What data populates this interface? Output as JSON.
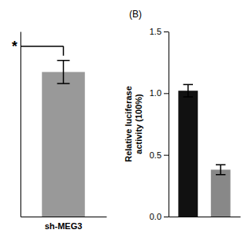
{
  "chart_data": [
    {
      "type": "bar",
      "categories": [
        "sh-MEG3"
      ],
      "values": [
        1.25
      ],
      "errors": [
        0.1
      ],
      "color": "#999999",
      "ylim": [
        0,
        1.6
      ],
      "annotation": "*",
      "tick_labels": "x"
    },
    {
      "type": "bar",
      "title": "(B)",
      "y_label": "Relative luciferase\nactivity (100%)",
      "categories": [
        null,
        null
      ],
      "values": [
        1.02,
        0.38
      ],
      "errors": [
        0.05,
        0.04
      ],
      "colors": [
        "#111111",
        "#888888"
      ],
      "ylim": [
        0.0,
        1.5
      ],
      "yticks": [
        {
          "value": 0.0,
          "label": "0.0"
        },
        {
          "value": 0.5,
          "label": "0.5"
        },
        {
          "value": 1.0,
          "label": "1.0"
        },
        {
          "value": 1.5,
          "label": "1.5"
        }
      ],
      "tick_labels": "y"
    }
  ]
}
